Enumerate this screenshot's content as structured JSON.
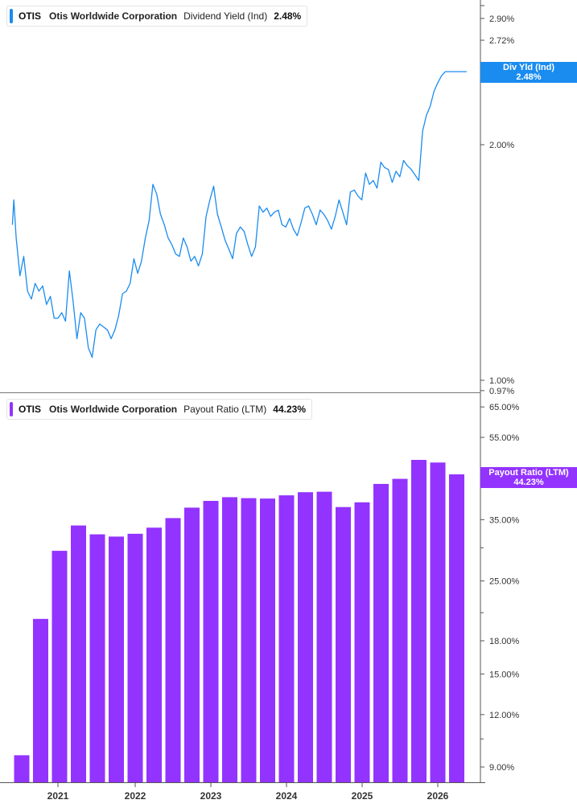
{
  "colors": {
    "yield": "#1a8cf0",
    "payout": "#9333ff",
    "axis": "#555555",
    "grid_text": "#333333"
  },
  "top_panel": {
    "ticker": "OTIS",
    "company": "Otis Worldwide Corporation",
    "metric": "Dividend Yield (Ind)",
    "value": "2.48%",
    "tag_line1": "Div Yld (Ind)",
    "tag_line2": "2.48%"
  },
  "bottom_panel": {
    "ticker": "OTIS",
    "company": "Otis Worldwide Corporation",
    "metric": "Payout Ratio (LTM)",
    "value": "44.23%",
    "tag_line1": "Payout Ratio (LTM)",
    "tag_line2": "44.23%"
  },
  "chart_data": [
    {
      "type": "line",
      "scale": "log",
      "ylim": [
        0.97,
        3.1
      ],
      "ytick_labels": [
        "2.90%",
        "2.72%",
        "2.00%",
        "1.00%",
        "0.97%"
      ],
      "ytick_values": [
        2.9,
        2.72,
        2.0,
        1.0,
        0.97
      ],
      "xlim": [
        2020.37,
        2026.43
      ],
      "xticks": [
        2021,
        2022,
        2023,
        2024,
        2025,
        2026
      ],
      "xtick_labels": [
        "2021",
        "2022",
        "2023",
        "2024",
        "2025",
        "2026"
      ],
      "series": [
        {
          "name": "Dividend Yield (Ind)",
          "x": [
            2020.4,
            2020.42,
            2020.45,
            2020.5,
            2020.55,
            2020.6,
            2020.65,
            2020.7,
            2020.75,
            2020.8,
            2020.85,
            2020.9,
            2020.95,
            2021.0,
            2021.05,
            2021.1,
            2021.15,
            2021.2,
            2021.25,
            2021.3,
            2021.35,
            2021.4,
            2021.45,
            2021.5,
            2021.55,
            2021.6,
            2021.65,
            2021.7,
            2021.75,
            2021.8,
            2021.85,
            2021.9,
            2021.95,
            2022.0,
            2022.05,
            2022.1,
            2022.15,
            2022.2,
            2022.25,
            2022.3,
            2022.35,
            2022.4,
            2022.45,
            2022.5,
            2022.55,
            2022.6,
            2022.65,
            2022.7,
            2022.75,
            2022.8,
            2022.85,
            2022.9,
            2022.95,
            2023.0,
            2023.05,
            2023.1,
            2023.15,
            2023.2,
            2023.25,
            2023.3,
            2023.35,
            2023.4,
            2023.45,
            2023.5,
            2023.55,
            2023.6,
            2023.65,
            2023.7,
            2023.75,
            2023.8,
            2023.85,
            2023.9,
            2023.95,
            2024.0,
            2024.05,
            2024.1,
            2024.15,
            2024.2,
            2024.25,
            2024.3,
            2024.35,
            2024.4,
            2024.45,
            2024.5,
            2024.55,
            2024.6,
            2024.65,
            2024.7,
            2024.75,
            2024.8,
            2024.85,
            2024.9,
            2024.95,
            2025.0,
            2025.05,
            2025.1,
            2025.15,
            2025.2,
            2025.25,
            2025.3,
            2025.35,
            2025.4,
            2025.45,
            2025.5,
            2025.55,
            2025.6,
            2025.65,
            2025.7,
            2025.75,
            2025.8,
            2025.85,
            2025.9,
            2025.95,
            2026.0,
            2026.05,
            2026.1,
            2026.15,
            2026.2,
            2026.25,
            2026.3,
            2026.35,
            2026.38
          ],
          "values": [
            1.58,
            1.7,
            1.52,
            1.36,
            1.44,
            1.3,
            1.27,
            1.33,
            1.3,
            1.32,
            1.25,
            1.28,
            1.2,
            1.2,
            1.22,
            1.19,
            1.38,
            1.26,
            1.13,
            1.22,
            1.2,
            1.1,
            1.07,
            1.16,
            1.18,
            1.17,
            1.16,
            1.13,
            1.16,
            1.21,
            1.29,
            1.3,
            1.33,
            1.43,
            1.37,
            1.42,
            1.52,
            1.6,
            1.78,
            1.73,
            1.63,
            1.58,
            1.52,
            1.49,
            1.45,
            1.44,
            1.52,
            1.48,
            1.42,
            1.44,
            1.4,
            1.45,
            1.62,
            1.7,
            1.77,
            1.63,
            1.57,
            1.51,
            1.47,
            1.43,
            1.54,
            1.57,
            1.55,
            1.49,
            1.44,
            1.48,
            1.67,
            1.64,
            1.66,
            1.62,
            1.64,
            1.65,
            1.58,
            1.57,
            1.61,
            1.56,
            1.53,
            1.59,
            1.66,
            1.67,
            1.63,
            1.58,
            1.65,
            1.63,
            1.6,
            1.56,
            1.62,
            1.7,
            1.64,
            1.58,
            1.74,
            1.75,
            1.72,
            1.7,
            1.84,
            1.78,
            1.8,
            1.76,
            1.9,
            1.87,
            1.86,
            1.79,
            1.85,
            1.82,
            1.91,
            1.88,
            1.86,
            1.83,
            1.8,
            2.08,
            2.18,
            2.24,
            2.34,
            2.4,
            2.45,
            2.48,
            2.48,
            2.48,
            2.48,
            2.48,
            2.48,
            2.48
          ]
        }
      ]
    },
    {
      "type": "bar",
      "scale": "log",
      "ylim": [
        8.8,
        70
      ],
      "ytick_labels": [
        "65.00%",
        "55.00%",
        "35.00%",
        "25.00%",
        "18.00%",
        "15.00%",
        "12.00%",
        "9.00%"
      ],
      "ytick_values": [
        65,
        55,
        35,
        25,
        18,
        15,
        12,
        9
      ],
      "xtick_labels": [
        "2021",
        "2022",
        "2023",
        "2024",
        "2025",
        "2026"
      ],
      "series": [
        {
          "name": "Payout Ratio (LTM)",
          "values": [
            9.6,
            20.3,
            29.5,
            33.9,
            32.3,
            31.9,
            32.4,
            33.5,
            35.3,
            37.4,
            38.8,
            39.6,
            39.4,
            39.3,
            40.0,
            40.7,
            40.8,
            37.5,
            38.5,
            42.6,
            43.8,
            48.6,
            47.9,
            44.9
          ]
        }
      ]
    }
  ]
}
